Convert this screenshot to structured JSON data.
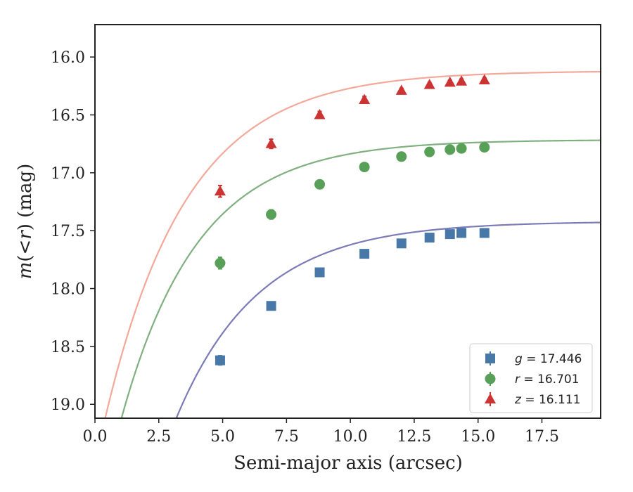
{
  "chart_data": {
    "type": "scatter",
    "title": "",
    "xlabel": "Semi-major axis (arcsec)",
    "ylabel_parts": [
      "m",
      "(",
      "<",
      "r",
      ")",
      " (mag)"
    ],
    "xlim": [
      0,
      19.8
    ],
    "ylim": [
      19.12,
      15.72
    ],
    "y_inverted": true,
    "grid": false,
    "legend_position": "bottom-right",
    "x_ticks": [
      0.0,
      2.5,
      5.0,
      7.5,
      10.0,
      12.5,
      15.0,
      17.5
    ],
    "x_tick_labels": [
      "0.0",
      "2.5",
      "5.0",
      "7.5",
      "10.0",
      "12.5",
      "15.0",
      "17.5"
    ],
    "y_ticks": [
      16.0,
      16.5,
      17.0,
      17.5,
      18.0,
      18.5,
      19.0
    ],
    "y_tick_labels": [
      "16.0",
      "16.5",
      "17.0",
      "17.5",
      "18.0",
      "18.5",
      "19.0"
    ],
    "series": [
      {
        "key": "g",
        "legend_var": "g",
        "legend_eq": " = 17.446",
        "marker": "square",
        "marker_color": "#4878a8",
        "curve_color": "#7b7bb8",
        "x": [
          4.9,
          6.9,
          8.8,
          10.55,
          12.0,
          13.1,
          13.9,
          14.35,
          15.25
        ],
        "y": [
          18.62,
          18.15,
          17.86,
          17.7,
          17.61,
          17.56,
          17.53,
          17.52,
          17.52
        ],
        "err": [
          0.04,
          0.03,
          0.03,
          0.02,
          0.02,
          0.02,
          0.02,
          0.02,
          0.02
        ],
        "model": {
          "m_inf": 17.42,
          "amp": 4.6,
          "scale": 3.2
        }
      },
      {
        "key": "r",
        "legend_var": "r",
        "legend_eq": " = 16.701",
        "marker": "circle",
        "marker_color": "#58a058",
        "curve_color": "#80b080",
        "x": [
          4.9,
          6.9,
          8.8,
          10.55,
          12.0,
          13.1,
          13.9,
          14.35,
          15.25
        ],
        "y": [
          17.78,
          17.36,
          17.1,
          16.95,
          16.86,
          16.82,
          16.8,
          16.79,
          16.78
        ],
        "err": [
          0.05,
          0.04,
          0.03,
          0.03,
          0.02,
          0.02,
          0.02,
          0.02,
          0.02
        ],
        "model": {
          "m_inf": 16.715,
          "amp": 3.4,
          "scale": 3.0
        }
      },
      {
        "key": "z",
        "legend_var": "z",
        "legend_eq": " = 16.111",
        "marker": "triangle",
        "marker_color": "#cc3333",
        "curve_color": "#f4a89a",
        "x": [
          4.9,
          6.9,
          8.8,
          10.55,
          12.0,
          13.1,
          13.9,
          14.35,
          15.25
        ],
        "y": [
          17.16,
          16.75,
          16.5,
          16.37,
          16.29,
          16.24,
          16.22,
          16.21,
          16.2
        ],
        "err": [
          0.05,
          0.04,
          0.03,
          0.03,
          0.02,
          0.02,
          0.02,
          0.02,
          0.02
        ],
        "model": {
          "m_inf": 16.12,
          "amp": 3.4,
          "scale": 3.2
        }
      }
    ]
  }
}
